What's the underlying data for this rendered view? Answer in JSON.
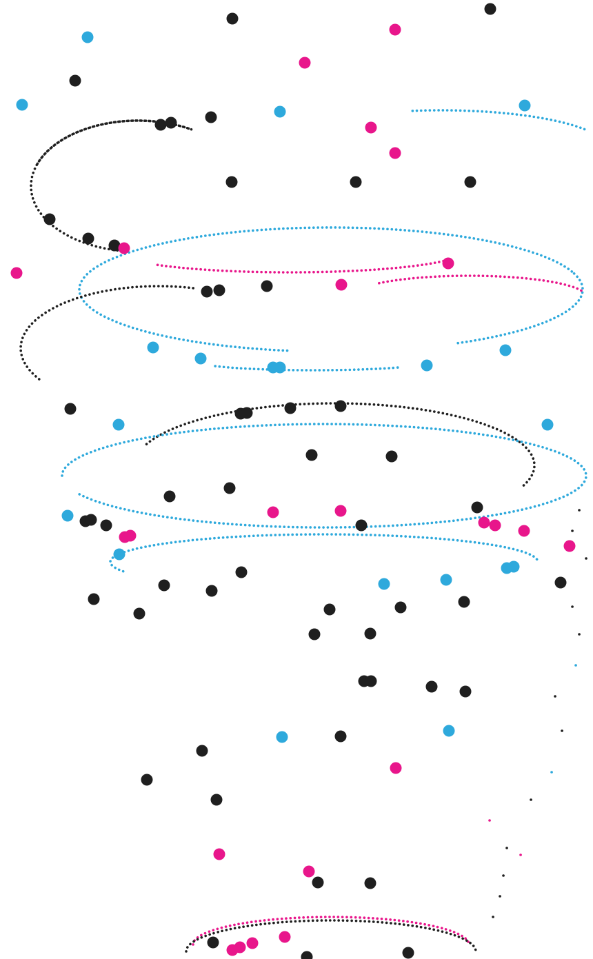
{
  "palette": {
    "background": "#ffffff",
    "black": "#1f1f1f",
    "blue": "#2ea9dc",
    "magenta": "#e8168b"
  }
}
